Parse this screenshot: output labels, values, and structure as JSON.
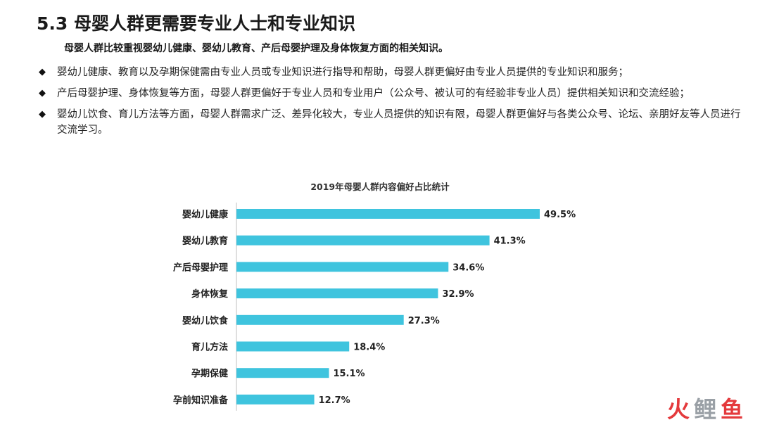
{
  "header": {
    "title": "5.3 母婴人群更需要专业人士和专业知识",
    "subtitle": "母婴人群比较重视婴幼儿健康、婴幼儿教育、产后母婴护理及身体恢复方面的相关知识。"
  },
  "bullets": [
    {
      "icon": "diamond-icon",
      "text": "婴幼儿健康、教育以及孕期保健需由专业人员或专业知识进行指导和帮助，母婴人群更偏好由专业人员提供的专业知识和服务；"
    },
    {
      "icon": "diamond-icon",
      "text": "产后母婴护理、身体恢复等方面，母婴人群更偏好于专业人员和专业用户（公众号、被认可的有经验非专业人员）提供相关知识和交流经验；"
    },
    {
      "icon": "diamond-icon",
      "text": "婴幼儿饮食、育儿方法等方面，母婴人群需求广泛、差异化较大，专业人员提供的知识有限，母婴人群更偏好与各类公众号、论坛、亲朋好友等人员进行交流学习。"
    }
  ],
  "chart_data": {
    "type": "bar",
    "orientation": "horizontal",
    "title": "2019年母婴人群内容偏好占比统计",
    "categories": [
      "婴幼儿健康",
      "婴幼儿教育",
      "产后母婴护理",
      "身体恢复",
      "婴幼儿饮食",
      "育儿方法",
      "孕期保健",
      "孕前知识准备"
    ],
    "values": [
      49.5,
      41.3,
      34.6,
      32.9,
      27.3,
      18.4,
      15.1,
      12.7
    ],
    "value_labels": [
      "49.5%",
      "41.3%",
      "34.6%",
      "32.9%",
      "27.3%",
      "18.4%",
      "15.1%",
      "12.7%"
    ],
    "xlim": [
      0,
      50
    ],
    "grid": false,
    "bar_color": "#3fc4de"
  },
  "logo": {
    "chars": [
      "火",
      "鲤",
      "鱼"
    ]
  }
}
